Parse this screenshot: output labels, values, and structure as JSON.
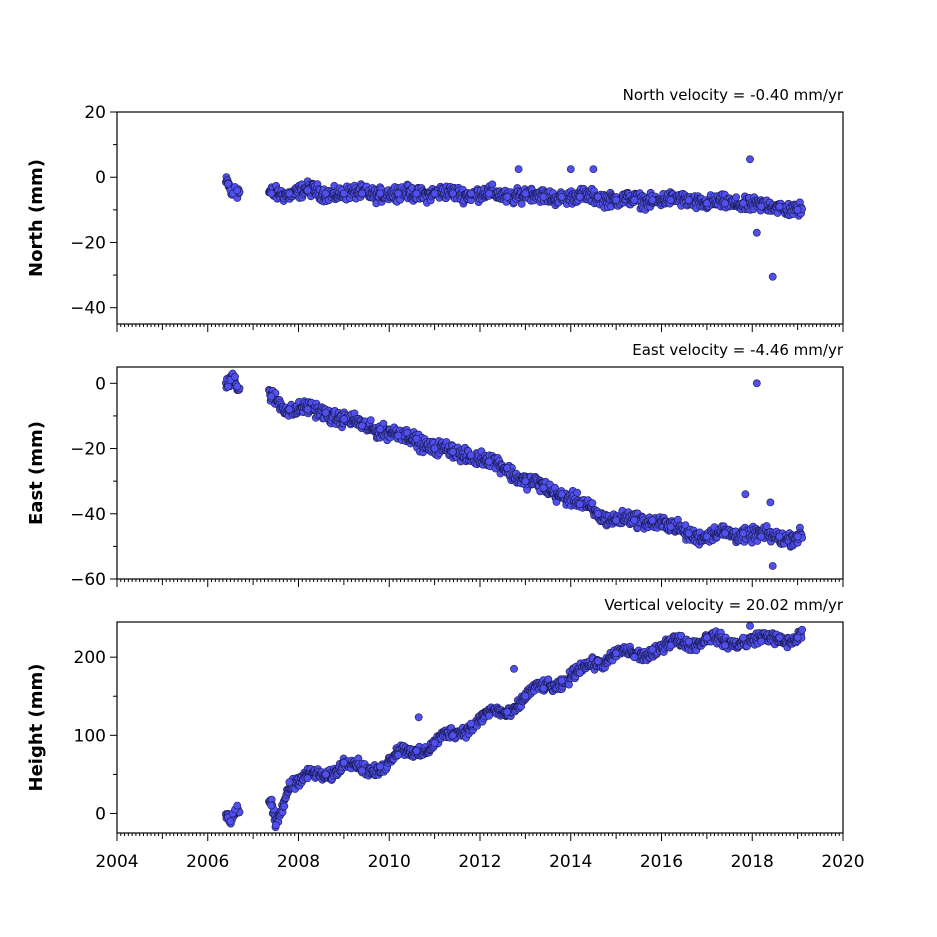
{
  "chart_data": [
    {
      "type": "scatter",
      "ylabel": "North (mm)",
      "annotation": "North velocity = -0.40 mm/yr",
      "xlim": [
        2004,
        2020
      ],
      "ylim": [
        -45,
        20
      ],
      "yticks": [
        -40,
        -20,
        0,
        20
      ],
      "ytick_labels": [
        "−40",
        "−20",
        "0",
        "20"
      ],
      "series": [
        {
          "x": [
            2006.45,
            2006.5,
            2006.55,
            2006.6,
            2006.65,
            2007.4,
            2007.8,
            2008.2,
            2008.6,
            2009.0,
            2009.4,
            2009.8,
            2010.2,
            2010.6,
            2011.0,
            2011.4,
            2011.8,
            2012.2,
            2012.6,
            2013.0,
            2013.4,
            2013.8,
            2014.2,
            2014.6,
            2015.0,
            2015.4,
            2015.8,
            2016.2,
            2016.6,
            2017.0,
            2017.4,
            2017.8,
            2018.2,
            2018.6,
            2019.0
          ],
          "y": [
            -2,
            -4,
            -5,
            -3,
            -4,
            -5,
            -5,
            -4,
            -5,
            -5,
            -5,
            -5,
            -5,
            -5,
            -5,
            -5,
            -5,
            -5,
            -6,
            -5,
            -6,
            -6,
            -6,
            -6,
            -7,
            -7,
            -7,
            -7,
            -7,
            -8,
            -8,
            -8,
            -9,
            -9,
            -10
          ]
        },
        {
          "x": [
            2012.85,
            2014.0,
            2014.5,
            2017.95,
            2018.1,
            2018.45
          ],
          "y": [
            2.5,
            2.5,
            2.5,
            5.5,
            -17,
            -30.5
          ]
        }
      ]
    },
    {
      "type": "scatter",
      "ylabel": "East (mm)",
      "annotation": "East velocity = -4.46 mm/yr",
      "xlim": [
        2004,
        2020
      ],
      "ylim": [
        -60,
        5
      ],
      "yticks": [
        -60,
        -40,
        -20,
        0
      ],
      "ytick_labels": [
        "−60",
        "−40",
        "−20",
        "0"
      ],
      "series": [
        {
          "x": [
            2006.45,
            2006.5,
            2006.55,
            2006.6,
            2006.65,
            2007.4,
            2007.8,
            2008.2,
            2008.6,
            2009.0,
            2009.4,
            2009.8,
            2010.2,
            2010.6,
            2011.0,
            2011.4,
            2011.8,
            2012.2,
            2012.6,
            2013.0,
            2013.4,
            2013.8,
            2014.2,
            2014.6,
            2015.0,
            2015.4,
            2015.8,
            2016.2,
            2016.6,
            2017.0,
            2017.4,
            2017.8,
            2018.2,
            2018.6,
            2019.0
          ],
          "y": [
            -1,
            1,
            3,
            2,
            -1,
            -4,
            -8,
            -8,
            -9,
            -11,
            -13,
            -14,
            -16,
            -17,
            -20,
            -21,
            -22,
            -24,
            -26,
            -30,
            -32,
            -34,
            -37,
            -40,
            -42,
            -42,
            -42,
            -44,
            -46,
            -47,
            -46,
            -46,
            -47,
            -47,
            -47
          ]
        },
        {
          "x": [
            2017.85,
            2018.1,
            2018.4,
            2018.45
          ],
          "y": [
            -34,
            0,
            -36.5,
            -56
          ]
        }
      ]
    },
    {
      "type": "scatter",
      "ylabel": "Height (mm)",
      "annotation": "Vertical velocity = 20.02 mm/yr",
      "xlim": [
        2004,
        2020
      ],
      "ylim": [
        -25,
        245
      ],
      "yticks": [
        0,
        100,
        200
      ],
      "ytick_labels": [
        "0",
        "100",
        "200"
      ],
      "series": [
        {
          "x": [
            2006.45,
            2006.5,
            2006.55,
            2006.6,
            2006.65,
            2007.4,
            2007.5,
            2007.8,
            2008.2,
            2008.6,
            2009.0,
            2009.4,
            2009.8,
            2010.2,
            2010.6,
            2011.0,
            2011.4,
            2011.8,
            2012.2,
            2012.6,
            2013.0,
            2013.4,
            2013.8,
            2014.2,
            2014.6,
            2015.0,
            2015.4,
            2015.8,
            2016.2,
            2016.6,
            2017.0,
            2017.4,
            2017.8,
            2018.2,
            2018.6,
            2019.0
          ],
          "y": [
            -5,
            -10,
            0,
            5,
            10,
            10,
            -15,
            40,
            45,
            50,
            65,
            55,
            60,
            75,
            80,
            90,
            100,
            115,
            125,
            130,
            150,
            160,
            170,
            180,
            195,
            205,
            200,
            210,
            215,
            220,
            225,
            215,
            225,
            220,
            225,
            225
          ]
        },
        {
          "x": [
            2010.65,
            2012.75,
            2017.95
          ],
          "y": [
            123,
            185,
            240
          ]
        }
      ]
    }
  ],
  "xticks": [
    2004,
    2006,
    2008,
    2010,
    2012,
    2014,
    2016,
    2018,
    2020
  ],
  "xtick_labels": [
    "2004",
    "2006",
    "2008",
    "2010",
    "2012",
    "2014",
    "2016",
    "2018",
    "2020"
  ],
  "colors": {
    "marker_fill": "#5050f0",
    "marker_edge": "#1a1a50"
  }
}
